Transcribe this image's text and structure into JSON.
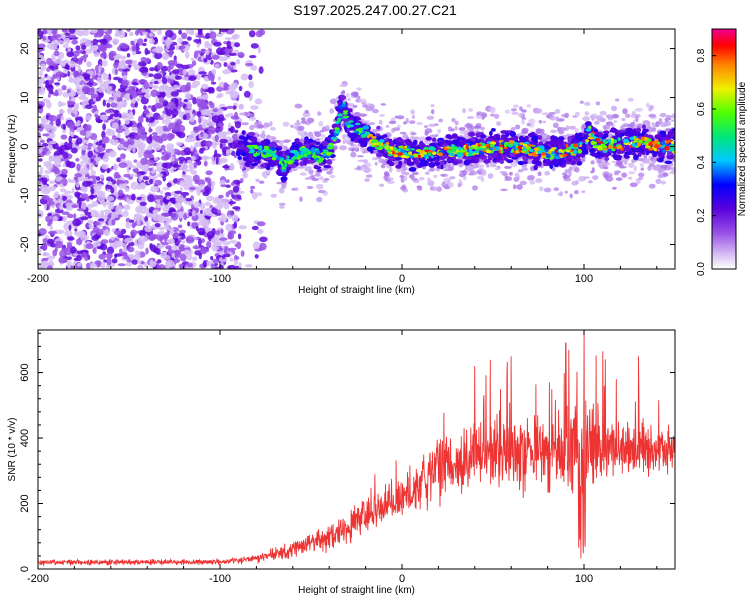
{
  "title": "S197.2025.247.00.27.C21",
  "chart_data": [
    {
      "type": "heatmap",
      "title": "S197.2025.247.00.27.C21",
      "xlabel": "Height of straight line (km)",
      "ylabel": "Frequency (Hz)",
      "xlim": [
        -200,
        150
      ],
      "ylim": [
        -25,
        24
      ],
      "xticks": [
        -200,
        -100,
        0,
        100
      ],
      "yticks": [
        -20,
        -10,
        0,
        10,
        20
      ],
      "colorbar": {
        "label": "Normalized spectral amplitude",
        "range": [
          0.0,
          0.9
        ],
        "ticks": [
          0.0,
          0.2,
          0.4,
          0.6,
          0.8
        ],
        "colormap": "white-purple-blue-cyan-green-yellow-red-magenta"
      },
      "ridge": {
        "x": [
          -90,
          -80,
          -70,
          -65,
          -60,
          -55,
          -50,
          -45,
          -40,
          -36,
          -34,
          -32,
          -30,
          -28,
          -25,
          -20,
          -15,
          -10,
          -5,
          0,
          10,
          20,
          30,
          40,
          50,
          60,
          70,
          80,
          90,
          100,
          103,
          106,
          110,
          120,
          130,
          140,
          150
        ],
        "y": [
          0,
          -1,
          -1.5,
          -4,
          -2,
          -1,
          -1,
          -2,
          -1,
          3,
          7,
          8,
          5,
          4,
          4,
          3,
          1,
          0,
          -1,
          -1,
          -1.5,
          -1,
          -1,
          -0.5,
          0,
          0,
          -0.5,
          -1.5,
          -1,
          0,
          3,
          1,
          0,
          0.5,
          1,
          0,
          0
        ]
      },
      "noise_region_x": [
        -200,
        -85
      ]
    },
    {
      "type": "line",
      "title": "",
      "xlabel": "Height of straight line (km)",
      "ylabel": "SNR (10 * v/v)",
      "xlim": [
        -200,
        150
      ],
      "ylim": [
        0,
        730
      ],
      "xticks": [
        -200,
        -100,
        0,
        100
      ],
      "yticks": [
        0,
        200,
        400,
        600
      ],
      "series": [
        {
          "name": "SNR",
          "color": "#ee3333",
          "envelope_x": [
            -200,
            -100,
            -80,
            -60,
            -40,
            -20,
            0,
            10,
            20,
            30,
            40,
            50,
            60,
            70,
            80,
            90,
            100,
            110,
            120,
            130,
            140,
            150
          ],
          "envelope_mean": [
            20,
            22,
            30,
            60,
            100,
            160,
            220,
            260,
            300,
            330,
            350,
            360,
            360,
            355,
            360,
            365,
            370,
            370,
            360,
            360,
            365,
            370
          ],
          "envelope_spread": [
            8,
            8,
            12,
            25,
            40,
            55,
            70,
            80,
            90,
            95,
            100,
            105,
            110,
            115,
            110,
            120,
            140,
            110,
            80,
            75,
            70,
            70
          ],
          "peaks": [
            {
              "x": 100,
              "y": 730
            },
            {
              "x": 90,
              "y": 690
            },
            {
              "x": 60,
              "y": 650
            },
            {
              "x": 130,
              "y": 650
            },
            {
              "x": 40,
              "y": 620
            }
          ]
        }
      ]
    }
  ]
}
